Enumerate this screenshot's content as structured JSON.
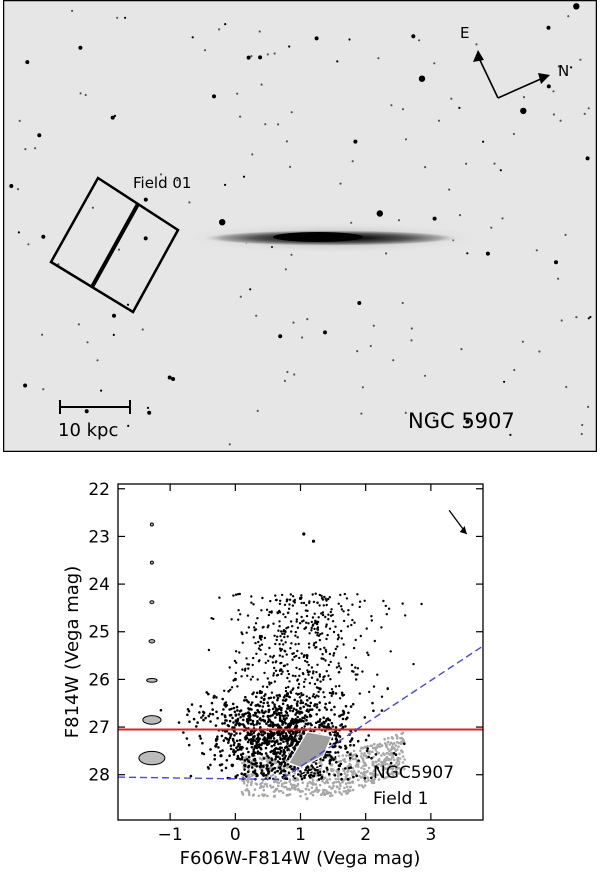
{
  "image": {
    "title": "NGC 5907",
    "field_label": "Field 01",
    "scalebar_label": "10 kpc",
    "compass": {
      "east": "E",
      "north": "N"
    }
  },
  "chart_data": {
    "type": "scatter",
    "xlabel": "F606W-F814W (Vega mag)",
    "ylabel": "F814W (Vega mag)",
    "xlim": [
      -1.8,
      3.8
    ],
    "ylim": [
      28.95,
      21.9
    ],
    "y_inverted": true,
    "xticks": [
      -1,
      0,
      1,
      2,
      3
    ],
    "yticks": [
      22,
      23,
      24,
      25,
      26,
      27,
      28
    ],
    "annotation": [
      "NGC5907",
      "Field  1"
    ],
    "trgb_line": {
      "y": 27.05,
      "color": "#d62728"
    },
    "completeness_line": {
      "points": [
        [
          -1.8,
          28.05
        ],
        [
          0.7,
          28.1
        ],
        [
          3.8,
          25.3
        ]
      ],
      "color": "#4a4ad0"
    },
    "reddening_vector": {
      "from": [
        3.28,
        22.45
      ],
      "to": [
        3.55,
        22.95
      ]
    },
    "error_ellipses": [
      {
        "mag": 22.75,
        "color_err": 0.015,
        "mag_err": 0.015
      },
      {
        "mag": 23.55,
        "color_err": 0.02,
        "mag_err": 0.02
      },
      {
        "mag": 24.38,
        "color_err": 0.03,
        "mag_err": 0.03
      },
      {
        "mag": 25.2,
        "color_err": 0.045,
        "mag_err": 0.035
      },
      {
        "mag": 26.02,
        "color_err": 0.08,
        "mag_err": 0.04
      },
      {
        "mag": 26.85,
        "color_err": 0.14,
        "mag_err": 0.09
      },
      {
        "mag": 27.65,
        "color_err": 0.2,
        "mag_err": 0.14
      }
    ],
    "series": [
      {
        "color": "#000000",
        "x": [
          -0.22,
          0.35,
          0.9,
          1.1,
          1.3,
          -0.05,
          0.6,
          1.4,
          0.2,
          1.0,
          0.5,
          -0.3,
          1.2,
          0.8,
          0.0,
          1.6,
          0.4,
          1.05,
          0.7,
          1.25
        ],
        "y": [
          27.6,
          27.3,
          26.9,
          25.5,
          26.2,
          27.8,
          27.5,
          27.0,
          26.7,
          24.3,
          27.9,
          27.4,
          23.1,
          26.3,
          26.0,
          27.2,
          25.1,
          22.95,
          25.8,
          24.8
        ]
      },
      {
        "color": "#a8a8a8",
        "x": [
          0.4,
          0.8,
          1.2,
          1.6,
          2.0,
          0.6,
          1.0,
          1.4,
          1.8,
          2.2,
          0.2,
          2.4,
          1.1,
          1.5,
          0.9
        ],
        "y": [
          28.25,
          28.3,
          28.2,
          28.0,
          27.8,
          28.45,
          28.35,
          28.15,
          27.95,
          27.7,
          28.1,
          27.55,
          28.5,
          27.9,
          28.1
        ]
      }
    ]
  }
}
